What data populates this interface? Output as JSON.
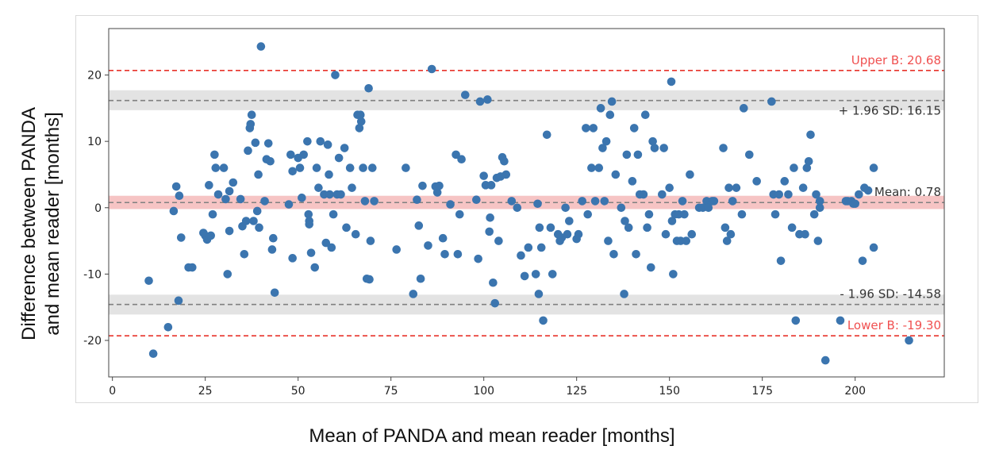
{
  "chart_data": {
    "type": "scatter",
    "title": "",
    "xlabel": "Mean of PANDA and mean reader [months]",
    "ylabel_line1": "Difference between PANDA",
    "ylabel_line2": "and mean reader [months]",
    "xlim": [
      -1,
      224
    ],
    "ylim": [
      -25.5,
      27
    ],
    "xticks": [
      0,
      25,
      50,
      75,
      100,
      125,
      150,
      175,
      200
    ],
    "yticks": [
      -20,
      -10,
      0,
      10,
      20
    ],
    "grid": false,
    "point_color": "#3b75af",
    "reference_lines": [
      {
        "name": "upper",
        "y": 20.68,
        "label": "Upper B: 20.68",
        "color": "#e8332a",
        "style": "dashed",
        "label_color": "#f05050"
      },
      {
        "name": "plus-sd",
        "y": 16.15,
        "label": "+ 1.96 SD: 16.15",
        "color": "#808080",
        "style": "dashed",
        "band": [
          14.7,
          17.7
        ],
        "band_color": "#e3e3e3",
        "label_color": "#333333"
      },
      {
        "name": "mean",
        "y": 0.78,
        "label": "Mean: 0.78",
        "color": "#808080",
        "style": "dashed",
        "band": [
          -0.2,
          1.8
        ],
        "band_color": "#f6c4c4",
        "label_color": "#333333"
      },
      {
        "name": "minus-sd",
        "y": -14.58,
        "label": "- 1.96 SD: -14.58",
        "color": "#808080",
        "style": "dashed",
        "band": [
          -16.1,
          -13.1
        ],
        "band_color": "#e3e3e3",
        "label_color": "#333333"
      },
      {
        "name": "lower",
        "y": -19.3,
        "label": "Lower B: -19.30",
        "color": "#e8332a",
        "style": "dashed",
        "label_color": "#f05050"
      }
    ],
    "points": [
      [
        9.8,
        -11
      ],
      [
        11,
        -22
      ],
      [
        15,
        -18
      ],
      [
        16.5,
        -0.5
      ],
      [
        17.2,
        3.2
      ],
      [
        17.8,
        -14
      ],
      [
        18,
        1.8
      ],
      [
        18.5,
        -4.5
      ],
      [
        20.5,
        -9
      ],
      [
        21.5,
        -9
      ],
      [
        24.5,
        -3.8
      ],
      [
        25,
        -4.2
      ],
      [
        25.5,
        -4.8
      ],
      [
        26,
        3.4
      ],
      [
        26.5,
        -4.2
      ],
      [
        27,
        -1
      ],
      [
        27.5,
        8
      ],
      [
        27.8,
        6
      ],
      [
        28.5,
        2
      ],
      [
        30,
        6
      ],
      [
        30.5,
        1.3
      ],
      [
        31,
        -10
      ],
      [
        31.5,
        2.5
      ],
      [
        31.5,
        -3.5
      ],
      [
        32.5,
        3.8
      ],
      [
        34.5,
        1.3
      ],
      [
        35,
        -2.8
      ],
      [
        35.5,
        -7
      ],
      [
        36,
        -2
      ],
      [
        36.5,
        8.6
      ],
      [
        37,
        12
      ],
      [
        37.2,
        12.6
      ],
      [
        37.5,
        14
      ],
      [
        38,
        -2
      ],
      [
        38.5,
        9.8
      ],
      [
        39,
        -0.5
      ],
      [
        39.3,
        5
      ],
      [
        39.5,
        -3
      ],
      [
        40,
        24.3
      ],
      [
        41,
        1
      ],
      [
        41.5,
        7.3
      ],
      [
        42,
        9.7
      ],
      [
        42.5,
        7
      ],
      [
        43,
        -6.3
      ],
      [
        43.3,
        -4.6
      ],
      [
        43.7,
        -12.8
      ],
      [
        47.5,
        0.5
      ],
      [
        48,
        8
      ],
      [
        48.5,
        -7.6
      ],
      [
        48.5,
        5.5
      ],
      [
        50,
        7.5
      ],
      [
        50.5,
        6
      ],
      [
        51,
        1.5
      ],
      [
        51.5,
        8
      ],
      [
        52.5,
        10
      ],
      [
        52.8,
        -1
      ],
      [
        53,
        -2
      ],
      [
        53.5,
        -6.8
      ],
      [
        53,
        -2.5
      ],
      [
        54.5,
        -9
      ],
      [
        55,
        6
      ],
      [
        55.5,
        3
      ],
      [
        56,
        10
      ],
      [
        57,
        2
      ],
      [
        57.5,
        -5.3
      ],
      [
        58,
        9.5
      ],
      [
        58.3,
        5
      ],
      [
        58.5,
        2
      ],
      [
        59,
        -6
      ],
      [
        59.5,
        -1
      ],
      [
        60,
        20
      ],
      [
        60.5,
        2
      ],
      [
        61,
        7.5
      ],
      [
        61.5,
        2
      ],
      [
        62.5,
        9
      ],
      [
        63,
        -3
      ],
      [
        64,
        6
      ],
      [
        64.5,
        3
      ],
      [
        65.5,
        -4
      ],
      [
        66,
        14
      ],
      [
        66.5,
        12
      ],
      [
        66.8,
        14
      ],
      [
        67,
        13
      ],
      [
        67.5,
        6
      ],
      [
        68,
        1
      ],
      [
        68.5,
        -10.7
      ],
      [
        69,
        18
      ],
      [
        69.2,
        -10.8
      ],
      [
        69.5,
        -5
      ],
      [
        70,
        6
      ],
      [
        70.5,
        1
      ],
      [
        76.5,
        -6.3
      ],
      [
        79,
        6
      ],
      [
        81,
        -13
      ],
      [
        82,
        1.2
      ],
      [
        82.5,
        -2.7
      ],
      [
        83,
        -10.7
      ],
      [
        83.5,
        3.3
      ],
      [
        85,
        -5.7
      ],
      [
        86,
        20.9
      ],
      [
        87,
        3.2
      ],
      [
        87.5,
        2.3
      ],
      [
        88,
        3.3
      ],
      [
        89,
        -4.6
      ],
      [
        89.5,
        -7
      ],
      [
        91,
        0.5
      ],
      [
        92.5,
        8
      ],
      [
        93,
        -7
      ],
      [
        93.5,
        -1
      ],
      [
        94,
        7.3
      ],
      [
        95,
        17
      ],
      [
        98,
        1.2
      ],
      [
        98.5,
        -7.7
      ],
      [
        99,
        16
      ],
      [
        100,
        4.8
      ],
      [
        100.5,
        3.4
      ],
      [
        101,
        16.3
      ],
      [
        101.5,
        -3.6
      ],
      [
        101.7,
        -1.5
      ],
      [
        102,
        3.4
      ],
      [
        102.5,
        -11.3
      ],
      [
        103,
        -14.4
      ],
      [
        103.5,
        4.5
      ],
      [
        104,
        -5
      ],
      [
        104.5,
        4.7
      ],
      [
        105,
        7.6
      ],
      [
        105.5,
        7
      ],
      [
        106,
        5
      ],
      [
        107.5,
        1
      ],
      [
        109,
        0
      ],
      [
        110,
        -7.2
      ],
      [
        111,
        -10.3
      ],
      [
        112,
        -6
      ],
      [
        114,
        -10
      ],
      [
        114.5,
        0.6
      ],
      [
        114.8,
        -13
      ],
      [
        115,
        -3
      ],
      [
        115.5,
        -6
      ],
      [
        116,
        -17
      ],
      [
        117,
        11
      ],
      [
        118,
        -3
      ],
      [
        118.5,
        -10
      ],
      [
        120,
        -4
      ],
      [
        120.5,
        -5
      ],
      [
        121,
        -4.5
      ],
      [
        122,
        0
      ],
      [
        122.5,
        -4
      ],
      [
        123,
        -2
      ],
      [
        125,
        -4.7
      ],
      [
        125.5,
        -4
      ],
      [
        126.5,
        1
      ],
      [
        127.5,
        12
      ],
      [
        128,
        -1
      ],
      [
        129,
        6
      ],
      [
        129.5,
        12
      ],
      [
        130,
        1
      ],
      [
        131,
        6
      ],
      [
        131.5,
        15
      ],
      [
        132,
        9
      ],
      [
        132.5,
        1
      ],
      [
        133,
        10
      ],
      [
        133.5,
        -5
      ],
      [
        134,
        14
      ],
      [
        134.5,
        16
      ],
      [
        135,
        -7
      ],
      [
        135.5,
        5
      ],
      [
        137,
        0
      ],
      [
        137.8,
        -13
      ],
      [
        138,
        -2
      ],
      [
        138.5,
        8
      ],
      [
        139,
        -3
      ],
      [
        140,
        4
      ],
      [
        140.5,
        12
      ],
      [
        141,
        -7
      ],
      [
        141.5,
        8
      ],
      [
        142,
        2
      ],
      [
        143,
        2
      ],
      [
        143.5,
        14
      ],
      [
        144,
        -3
      ],
      [
        144.5,
        -1
      ],
      [
        145,
        -9
      ],
      [
        145.5,
        10
      ],
      [
        146,
        9
      ],
      [
        148,
        2
      ],
      [
        148.5,
        9
      ],
      [
        149,
        -4
      ],
      [
        150,
        3
      ],
      [
        150.5,
        19
      ],
      [
        150.7,
        -2
      ],
      [
        151,
        -10
      ],
      [
        151.5,
        -1
      ],
      [
        152,
        -5
      ],
      [
        152.5,
        -1
      ],
      [
        153,
        -5
      ],
      [
        153.5,
        1
      ],
      [
        154,
        -1
      ],
      [
        154.5,
        -5
      ],
      [
        155.5,
        5
      ],
      [
        156,
        -4
      ],
      [
        158,
        0
      ],
      [
        159,
        0
      ],
      [
        160,
        1
      ],
      [
        160.5,
        0
      ],
      [
        161.5,
        1
      ],
      [
        162,
        1
      ],
      [
        164.5,
        9
      ],
      [
        165,
        -3
      ],
      [
        165.5,
        -5
      ],
      [
        166,
        3
      ],
      [
        166.5,
        -4
      ],
      [
        167,
        1
      ],
      [
        168,
        3
      ],
      [
        169.5,
        -1
      ],
      [
        170,
        15
      ],
      [
        171.5,
        8
      ],
      [
        173.5,
        4
      ],
      [
        177.5,
        16
      ],
      [
        178,
        2
      ],
      [
        178.5,
        -1
      ],
      [
        179.5,
        2
      ],
      [
        180,
        -8
      ],
      [
        181,
        4
      ],
      [
        182,
        2
      ],
      [
        183,
        -3
      ],
      [
        183.5,
        6
      ],
      [
        184,
        -17
      ],
      [
        185,
        -4
      ],
      [
        186,
        3
      ],
      [
        186.5,
        -4
      ],
      [
        187,
        6
      ],
      [
        187.5,
        7
      ],
      [
        188,
        11
      ],
      [
        189,
        -1
      ],
      [
        189.5,
        2
      ],
      [
        190,
        -5
      ],
      [
        190.5,
        0
      ],
      [
        190.5,
        1
      ],
      [
        192,
        -23
      ],
      [
        196,
        -17
      ],
      [
        197.5,
        1
      ],
      [
        198,
        1
      ],
      [
        199,
        1
      ],
      [
        199.5,
        0.6
      ],
      [
        200,
        0.6
      ],
      [
        201,
        2
      ],
      [
        202,
        -8
      ],
      [
        202.5,
        3
      ],
      [
        203.5,
        2.6
      ],
      [
        205,
        -6
      ],
      [
        205,
        6
      ],
      [
        214.5,
        -20
      ]
    ]
  }
}
